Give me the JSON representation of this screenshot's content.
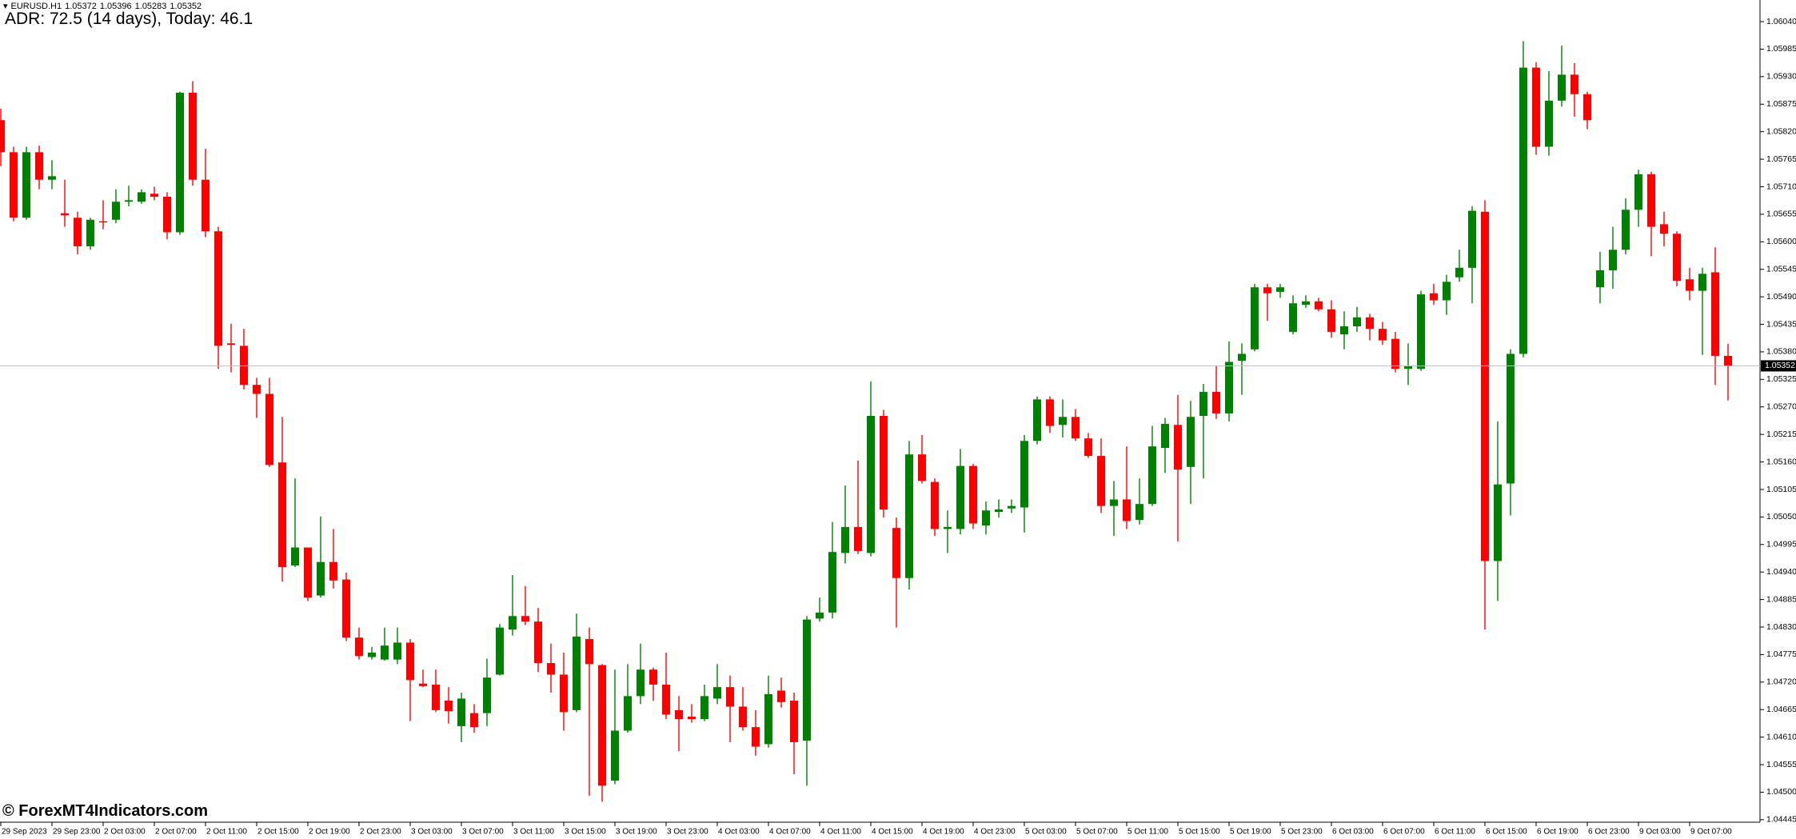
{
  "chart_data": {
    "type": "candlestick",
    "symbol": "EURUSD.H1",
    "indicator_label": "ADR: 72.5 (14 days), Today: 46.1",
    "watermark": "© ForexMT4Indicators.com",
    "up_color": "#008000",
    "down_color": "#ff0000",
    "grid": false,
    "ylim": [
      1.0444,
      1.0608
    ],
    "yticks": [
      {
        "value": 1.0604,
        "label": "1.06040"
      },
      1.05985,
      {
        "value": 1.0593,
        "label": "1.05930"
      },
      1.05875,
      {
        "value": 1.0582,
        "label": "1.05820"
      },
      1.05765,
      {
        "value": 1.0571,
        "label": "1.05710"
      },
      1.05655,
      {
        "value": 1.056,
        "label": "1.05600"
      },
      1.05545,
      {
        "value": 1.0549,
        "label": "1.05490"
      },
      1.05435,
      {
        "value": 1.0538,
        "label": "1.05380"
      },
      1.05325,
      {
        "value": 1.0527,
        "label": "1.05270"
      },
      1.05215,
      {
        "value": 1.0516,
        "label": "1.05160"
      },
      1.05105,
      {
        "value": 1.0505,
        "label": "1.05050"
      },
      1.04995,
      {
        "value": 1.0494,
        "label": "1.04940"
      },
      1.04885,
      {
        "value": 1.0483,
        "label": "1.04830"
      },
      1.04775,
      {
        "value": 1.0472,
        "label": "1.04720"
      },
      1.04665,
      {
        "value": 1.0461,
        "label": "1.04610"
      },
      1.04555,
      {
        "value": 1.045,
        "label": "1.04500"
      },
      1.04445
    ],
    "categories": [
      "29 Sep 2023",
      null,
      null,
      null,
      "29 Sep 23:00",
      null,
      null,
      null,
      "2 Oct 03:00",
      null,
      null,
      null,
      "2 Oct 07:00",
      null,
      null,
      null,
      "2 Oct 11:00",
      null,
      null,
      null,
      "2 Oct 15:00",
      null,
      null,
      null,
      "2 Oct 19:00",
      null,
      null,
      null,
      "2 Oct 23:00",
      null,
      null,
      null,
      "3 Oct 03:00",
      null,
      null,
      null,
      "3 Oct 07:00",
      null,
      null,
      null,
      "3 Oct 11:00",
      null,
      null,
      null,
      "3 Oct 15:00",
      null,
      null,
      null,
      "3 Oct 19:00",
      null,
      null,
      null,
      "3 Oct 23:00",
      null,
      null,
      null,
      "4 Oct 03:00",
      null,
      null,
      null,
      "4 Oct 07:00",
      null,
      null,
      null,
      "4 Oct 11:00",
      null,
      null,
      null,
      "4 Oct 15:00",
      null,
      null,
      null,
      "4 Oct 19:00",
      null,
      null,
      null,
      "4 Oct 23:00",
      null,
      null,
      null,
      "5 Oct 03:00",
      null,
      null,
      null,
      "5 Oct 07:00",
      null,
      null,
      null,
      "5 Oct 11:00",
      null,
      null,
      null,
      "5 Oct 15:00",
      null,
      null,
      null,
      "5 Oct 19:00",
      null,
      null,
      null,
      "5 Oct 23:00",
      null,
      null,
      null,
      "6 Oct 03:00",
      null,
      null,
      null,
      "6 Oct 07:00",
      null,
      null,
      null,
      "6 Oct 11:00",
      null,
      null,
      null,
      "6 Oct 15:00",
      null,
      null,
      null,
      "6 Oct 19:00",
      null,
      null,
      null,
      "6 Oct 23:00",
      null,
      null,
      null,
      "9 Oct 03:00",
      null,
      null,
      null,
      "9 Oct 07:00",
      null,
      null,
      null
    ],
    "open": [
      1.05843,
      1.05779,
      1.05648,
      1.05779,
      1.05724,
      1.05657,
      1.05648,
      1.05591,
      1.05641,
      1.05644,
      1.0568,
      1.0568,
      1.05696,
      1.0569,
      1.05619,
      1.05898,
      1.05724,
      1.05621,
      1.05397,
      1.05392,
      1.05314,
      1.05296,
      1.05159,
      1.04953,
      1.04989,
      1.04893,
      1.0496,
      1.04925,
      1.04809,
      1.0477,
      1.04765,
      1.04765,
      1.04799,
      1.04717,
      1.04715,
      1.04683,
      1.04632,
      1.04658,
      1.04658,
      1.04735,
      1.04825,
      1.04852,
      1.04841,
      1.04758,
      1.04735,
      1.04664,
      1.04806,
      1.04754,
      1.04523,
      1.04623,
      1.04692,
      1.04745,
      1.04715,
      1.04664,
      1.04651,
      1.04646,
      1.04687,
      1.0471,
      1.04671,
      1.0463,
      1.04596,
      1.04703,
      1.04683,
      1.04603,
      1.04847,
      1.04859,
      1.04978,
      1.0503,
      1.04978,
      1.05252,
      1.05028,
      1.04928,
      1.05175,
      1.0512,
      1.05026,
      1.05026,
      1.05152,
      1.05033,
      1.0506,
      1.05067,
      1.05069,
      1.05202,
      1.05285,
      1.05234,
      1.0525,
      1.05207,
      1.05172,
      1.05072,
      1.05085,
      1.05044,
      1.05076,
      1.05188,
      1.05234,
      1.0515,
      1.05252,
      1.053,
      1.05257,
      1.05362,
      1.05385,
      1.05509,
      1.055,
      1.0542,
      1.05474,
      1.05481,
      1.05465,
      1.05415,
      1.05431,
      1.05449,
      1.05426,
      1.05406,
      1.05346,
      1.05346,
      1.05497,
      1.05483,
      1.05529,
      1.05548,
      1.0566,
      1.04962,
      1.05117,
      1.05376,
      1.05948,
      1.0579,
      1.05882,
      1.05934,
      1.05895,
      1.05509,
      1.05543,
      1.05584,
      1.05664,
      1.05735,
      1.05635,
      1.05616,
      1.05525,
      1.05502,
      1.05539,
      1.05372
    ],
    "high": [
      1.05866,
      1.0579,
      1.0579,
      1.05792,
      1.05763,
      1.05724,
      1.0566,
      1.05648,
      1.05683,
      1.05705,
      1.05712,
      1.05705,
      1.0571,
      1.05699,
      1.059,
      1.05921,
      1.05786,
      1.0563,
      1.05436,
      1.05426,
      1.05328,
      1.05328,
      1.0525,
      1.05127,
      1.04989,
      1.05051,
      1.05026,
      1.04939,
      1.04829,
      1.0479,
      1.04829,
      1.04829,
      1.04806,
      1.04745,
      1.04745,
      1.0471,
      1.04699,
      1.04676,
      1.04767,
      1.04836,
      1.04934,
      1.04912,
      1.04868,
      1.04797,
      1.04779,
      1.04857,
      1.04829,
      1.04756,
      1.04745,
      1.04756,
      1.04797,
      1.04749,
      1.04779,
      1.04692,
      1.04676,
      1.04715,
      1.04756,
      1.04733,
      1.0471,
      1.04664,
      1.04733,
      1.04729,
      1.04699,
      1.04852,
      1.04889,
      1.0504,
      1.05113,
      1.05163,
      1.05321,
      1.05264,
      1.05049,
      1.05202,
      1.05214,
      1.05127,
      1.05063,
      1.05186,
      1.05156,
      1.05081,
      1.05085,
      1.05085,
      1.05214,
      1.05291,
      1.05291,
      1.05285,
      1.05266,
      1.05218,
      1.05207,
      1.05122,
      1.05191,
      1.05127,
      1.05232,
      1.05248,
      1.05294,
      1.05282,
      1.05316,
      1.05351,
      1.05401,
      1.05397,
      1.05516,
      1.05516,
      1.05516,
      1.05493,
      1.05493,
      1.05488,
      1.05483,
      1.05461,
      1.0547,
      1.05456,
      1.0544,
      1.0542,
      1.05397,
      1.05502,
      1.05516,
      1.05534,
      1.05584,
      1.05671,
      1.05683,
      1.05241,
      1.05385,
      1.06001,
      1.05959,
      1.05941,
      1.05992,
      1.05957,
      1.059,
      1.0558,
      1.0563,
      1.05687,
      1.05744,
      1.0574,
      1.0566,
      1.05621,
      1.05548,
      1.05548,
      1.05589,
      1.05396
    ],
    "low": [
      1.05751,
      1.05641,
      1.05644,
      1.05705,
      1.05705,
      1.0563,
      1.05575,
      1.05584,
      1.05625,
      1.05637,
      1.05671,
      1.05676,
      1.05683,
      1.05605,
      1.05614,
      1.05712,
      1.05609,
      1.05346,
      1.05339,
      1.05305,
      1.05248,
      1.0515,
      1.04921,
      1.0495,
      1.04882,
      1.04889,
      1.04907,
      1.04802,
      1.04765,
      1.04765,
      1.04763,
      1.04756,
      1.04642,
      1.0471,
      1.0466,
      1.04637,
      1.046,
      1.04619,
      1.04632,
      1.04733,
      1.04813,
      1.04834,
      1.0474,
      1.04699,
      1.04623,
      1.0466,
      1.04493,
      1.04481,
      1.04516,
      1.04619,
      1.04676,
      1.04683,
      1.04646,
      1.04582,
      1.04639,
      1.04642,
      1.04676,
      1.046,
      1.04623,
      1.04573,
      1.04589,
      1.04669,
      1.04536,
      1.04513,
      1.04841,
      1.04847,
      1.04957,
      1.04976,
      1.04971,
      1.05049,
      1.04829,
      1.04905,
      1.05117,
      1.05012,
      1.04978,
      1.05015,
      1.05026,
      1.05015,
      1.05049,
      1.05058,
      1.05019,
      1.05195,
      1.05218,
      1.05209,
      1.05202,
      1.05168,
      1.05058,
      1.05012,
      1.05026,
      1.05035,
      1.05072,
      1.05138,
      1.05001,
      1.05076,
      1.05127,
      1.05246,
      1.05241,
      1.05294,
      1.05381,
      1.05442,
      1.05488,
      1.05415,
      1.05468,
      1.05461,
      1.05408,
      1.05385,
      1.0542,
      1.05403,
      1.05394,
      1.05339,
      1.05314,
      1.05342,
      1.05474,
      1.05454,
      1.0552,
      1.05477,
      1.04825,
      1.04882,
      1.05053,
      1.05369,
      1.05774,
      1.05772,
      1.0587,
      1.0585,
      1.05825,
      1.05477,
      1.05506,
      1.05575,
      1.0563,
      1.05571,
      1.05591,
      1.05511,
      1.05483,
      1.05374,
      1.05314,
      1.05283
    ],
    "close": [
      1.05779,
      1.05648,
      1.05779,
      1.05724,
      1.05731,
      1.05653,
      1.05591,
      1.05644,
      1.0564,
      1.0568,
      1.05683,
      1.05699,
      1.0569,
      1.05619,
      1.05898,
      1.05724,
      1.05621,
      1.05392,
      1.05394,
      1.05314,
      1.05296,
      1.05154,
      1.0495,
      1.04989,
      1.04889,
      1.0496,
      1.04923,
      1.04809,
      1.04772,
      1.04779,
      1.04793,
      1.04799,
      1.04724,
      1.04712,
      1.04664,
      1.04662,
      1.04687,
      1.0463,
      1.04729,
      1.04829,
      1.04852,
      1.04841,
      1.04758,
      1.04735,
      1.0466,
      1.04811,
      1.04756,
      1.04513,
      1.04623,
      1.04692,
      1.04745,
      1.04715,
      1.04655,
      1.04646,
      1.04646,
      1.04692,
      1.0471,
      1.04671,
      1.0463,
      1.04591,
      1.04696,
      1.0468,
      1.046,
      1.04845,
      1.04859,
      1.0498,
      1.0503,
      1.04982,
      1.05252,
      1.05065,
      1.04928,
      1.05175,
      1.05122,
      1.05026,
      1.0503,
      1.05152,
      1.05037,
      1.05063,
      1.05065,
      1.05072,
      1.05202,
      1.05285,
      1.05232,
      1.0525,
      1.05207,
      1.05172,
      1.05072,
      1.05085,
      1.05042,
      1.05076,
      1.05191,
      1.05236,
      1.05145,
      1.0525,
      1.053,
      1.05257,
      1.0536,
      1.05376,
      1.05509,
      1.05497,
      1.05509,
      1.05477,
      1.05481,
      1.05465,
      1.0542,
      1.05431,
      1.05449,
      1.05426,
      1.05403,
      1.05346,
      1.05351,
      1.05495,
      1.05483,
      1.0552,
      1.05548,
      1.05662,
      1.04962,
      1.05115,
      1.05376,
      1.05948,
      1.0579,
      1.05882,
      1.05934,
      1.05895,
      1.05843,
      1.05543,
      1.05584,
      1.05664,
      1.05735,
      1.0563,
      1.05616,
      1.05522,
      1.05502,
      1.05536,
      1.05372,
      1.05352
    ]
  }
}
